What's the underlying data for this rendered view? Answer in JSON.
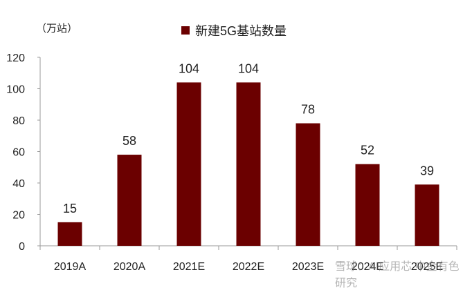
{
  "chart_data": {
    "type": "bar",
    "unit_label": "（万站）",
    "legend": [
      {
        "name": "新建5G基站数量"
      }
    ],
    "categories": [
      "2019A",
      "2020A",
      "2021E",
      "2022E",
      "2023E",
      "2024E",
      "2025E"
    ],
    "series": [
      {
        "name": "新建5G基站数量",
        "values": [
          15,
          58,
          104,
          104,
          78,
          52,
          39
        ],
        "color": "#6b0000"
      }
    ],
    "data_labels": [
      "15",
      "58",
      "104",
      "104",
      "78",
      "52",
      "39"
    ],
    "yticks": [
      "0",
      "20",
      "40",
      "60",
      "80",
      "100",
      "120"
    ],
    "ylim": [
      0,
      120
    ],
    "grid": false,
    "legend_position": "top-center"
  },
  "watermark": "雪球：AI应用芯 中金有色研究"
}
